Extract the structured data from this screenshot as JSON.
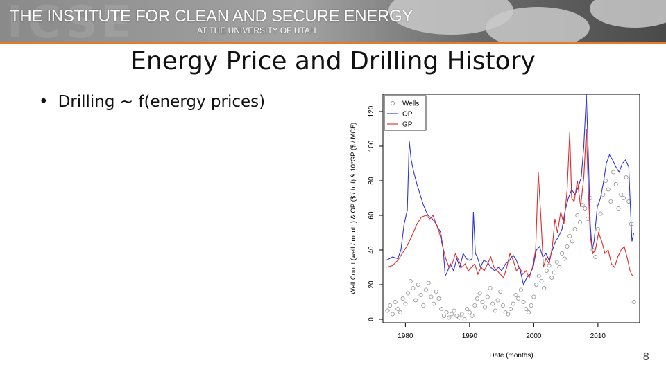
{
  "header": {
    "org_name": "THE INSTITUTE FOR CLEAN AND SECURE ENERGY",
    "org_sub": "AT THE UNIVERSITY OF UTAH",
    "logo_text": "ICSE",
    "accent_color": "#e8782a"
  },
  "slide": {
    "title": "Energy Price and Drilling History",
    "bullet": "Drilling ~ f(energy prices)",
    "page_number": "8"
  },
  "chart_data": {
    "type": "line",
    "xlabel": "Date (months)",
    "ylabel": "Well Count (well / month) & OP ($ / bbl) & 10*GP ($ / MCF)",
    "xlim": [
      1976.5,
      2016.5
    ],
    "ylim": [
      -2,
      130
    ],
    "xticks": [
      1980,
      1990,
      2000,
      2010
    ],
    "yticks": [
      0,
      20,
      40,
      60,
      80,
      100,
      120
    ],
    "legend_position": "top-left",
    "series": [
      {
        "name": "Wells",
        "color": "#999999",
        "style": "points",
        "x": [
          1977.2,
          1977.6,
          1978.0,
          1978.4,
          1978.8,
          1979.2,
          1979.6,
          1980.0,
          1980.4,
          1980.8,
          1981.2,
          1981.6,
          1982.0,
          1982.4,
          1982.8,
          1983.2,
          1983.6,
          1984.0,
          1984.4,
          1984.8,
          1985.2,
          1985.6,
          1986.0,
          1986.4,
          1986.8,
          1987.2,
          1987.6,
          1988.0,
          1988.4,
          1988.8,
          1989.2,
          1989.6,
          1990.0,
          1990.4,
          1990.8,
          1991.2,
          1991.6,
          1992.0,
          1992.4,
          1992.8,
          1993.2,
          1993.6,
          1994.0,
          1994.4,
          1994.8,
          1995.2,
          1995.6,
          1996.0,
          1996.4,
          1996.8,
          1997.2,
          1997.6,
          1998.0,
          1998.4,
          1998.8,
          1999.2,
          1999.6,
          2000.0,
          2000.4,
          2000.8,
          2001.2,
          2001.6,
          2002.0,
          2002.4,
          2002.8,
          2003.2,
          2003.6,
          2004.0,
          2004.4,
          2004.8,
          2005.2,
          2005.6,
          2006.0,
          2006.4,
          2006.8,
          2007.2,
          2007.6,
          2008.0,
          2008.4,
          2008.8,
          2009.2,
          2009.6,
          2010.0,
          2010.4,
          2010.8,
          2011.2,
          2011.6,
          2012.0,
          2012.4,
          2012.8,
          2013.2,
          2013.6,
          2014.0,
          2014.4,
          2014.8,
          2015.2,
          2015.6
        ],
        "values": [
          5,
          8,
          3,
          10,
          6,
          4,
          12,
          9,
          15,
          22,
          18,
          11,
          20,
          14,
          8,
          17,
          21,
          13,
          9,
          16,
          12,
          6,
          2,
          4,
          1,
          3,
          5,
          2,
          1,
          3,
          0,
          6,
          4,
          2,
          8,
          12,
          15,
          10,
          7,
          13,
          18,
          9,
          5,
          11,
          16,
          8,
          4,
          3,
          6,
          9,
          14,
          12,
          17,
          10,
          6,
          4,
          8,
          13,
          20,
          25,
          22,
          18,
          28,
          31,
          24,
          27,
          33,
          30,
          38,
          35,
          42,
          48,
          45,
          52,
          60,
          56,
          66,
          64,
          58,
          70,
          40,
          36,
          52,
          61,
          72,
          80,
          75,
          68,
          85,
          78,
          64,
          72,
          70,
          82,
          68,
          55,
          10
        ]
      },
      {
        "name": "OP",
        "color": "#2f35d6",
        "style": "line",
        "x": [
          1977.0,
          1978.0,
          1978.8,
          1979.3,
          1979.8,
          1980.3,
          1980.6,
          1980.9,
          1981.3,
          1981.8,
          1982.3,
          1982.8,
          1983.5,
          1984.2,
          1984.8,
          1985.5,
          1985.9,
          1986.2,
          1986.6,
          1987.0,
          1987.5,
          1988.0,
          1988.5,
          1989.0,
          1989.5,
          1990.0,
          1990.4,
          1990.6,
          1990.9,
          1991.2,
          1991.7,
          1992.2,
          1992.8,
          1993.3,
          1993.9,
          1994.5,
          1995.0,
          1995.6,
          1996.2,
          1996.8,
          1997.3,
          1997.9,
          1998.4,
          1998.9,
          1999.4,
          1999.9,
          2000.4,
          2000.9,
          2001.4,
          2001.9,
          2002.4,
          2002.9,
          2003.4,
          2003.9,
          2004.4,
          2004.9,
          2005.4,
          2005.9,
          2006.4,
          2006.9,
          2007.4,
          2007.8,
          2008.2,
          2008.5,
          2008.8,
          2009.1,
          2009.4,
          2009.9,
          2010.4,
          2010.9,
          2011.3,
          2011.8,
          2012.3,
          2012.8,
          2013.3,
          2013.8,
          2014.3,
          2014.8,
          2015.0,
          2015.3,
          2015.6
        ],
        "values": [
          34,
          36,
          35,
          40,
          55,
          63,
          103,
          92,
          85,
          78,
          72,
          66,
          60,
          58,
          55,
          50,
          40,
          25,
          28,
          32,
          28,
          35,
          30,
          38,
          35,
          34,
          35,
          62,
          38,
          36,
          30,
          34,
          33,
          30,
          28,
          30,
          28,
          32,
          34,
          37,
          34,
          28,
          20,
          24,
          26,
          30,
          40,
          42,
          36,
          38,
          34,
          40,
          45,
          48,
          52,
          63,
          70,
          75,
          72,
          76,
          82,
          100,
          130,
          95,
          55,
          40,
          45,
          65,
          70,
          80,
          90,
          95,
          92,
          88,
          85,
          90,
          92,
          88,
          70,
          45,
          50
        ]
      },
      {
        "name": "GP",
        "color": "#e02828",
        "style": "line",
        "x": [
          1977.0,
          1978.0,
          1978.8,
          1979.5,
          1980.2,
          1981.0,
          1981.8,
          1982.5,
          1983.2,
          1983.8,
          1984.3,
          1984.8,
          1985.3,
          1985.8,
          1986.3,
          1986.8,
          1987.3,
          1987.8,
          1988.3,
          1988.8,
          1989.3,
          1989.8,
          1990.3,
          1990.8,
          1991.3,
          1991.8,
          1992.3,
          1992.8,
          1993.3,
          1993.8,
          1994.3,
          1994.8,
          1995.3,
          1995.8,
          1996.3,
          1996.8,
          1997.3,
          1997.8,
          1998.3,
          1998.8,
          1999.3,
          1999.8,
          2000.3,
          2000.7,
          2001.1,
          2001.5,
          2001.9,
          2002.4,
          2002.9,
          2003.3,
          2003.7,
          2004.2,
          2004.7,
          2005.2,
          2005.6,
          2005.9,
          2006.3,
          2006.8,
          2007.3,
          2007.8,
          2008.2,
          2008.5,
          2008.8,
          2009.2,
          2009.6,
          2010.1,
          2010.6,
          2011.1,
          2011.6,
          2012.1,
          2012.6,
          2013.1,
          2013.6,
          2014.1,
          2014.6,
          2015.0,
          2015.4
        ],
        "values": [
          30,
          31,
          34,
          38,
          42,
          48,
          55,
          59,
          60,
          58,
          60,
          55,
          50,
          42,
          35,
          30,
          32,
          38,
          34,
          30,
          32,
          28,
          30,
          32,
          26,
          30,
          28,
          32,
          36,
          30,
          28,
          26,
          24,
          30,
          38,
          34,
          28,
          30,
          26,
          28,
          24,
          30,
          40,
          85,
          60,
          30,
          35,
          32,
          42,
          58,
          50,
          62,
          55,
          75,
          108,
          70,
          68,
          80,
          65,
          82,
          110,
          75,
          48,
          38,
          40,
          50,
          45,
          38,
          40,
          32,
          30,
          36,
          40,
          42,
          35,
          28,
          25
        ]
      }
    ]
  }
}
